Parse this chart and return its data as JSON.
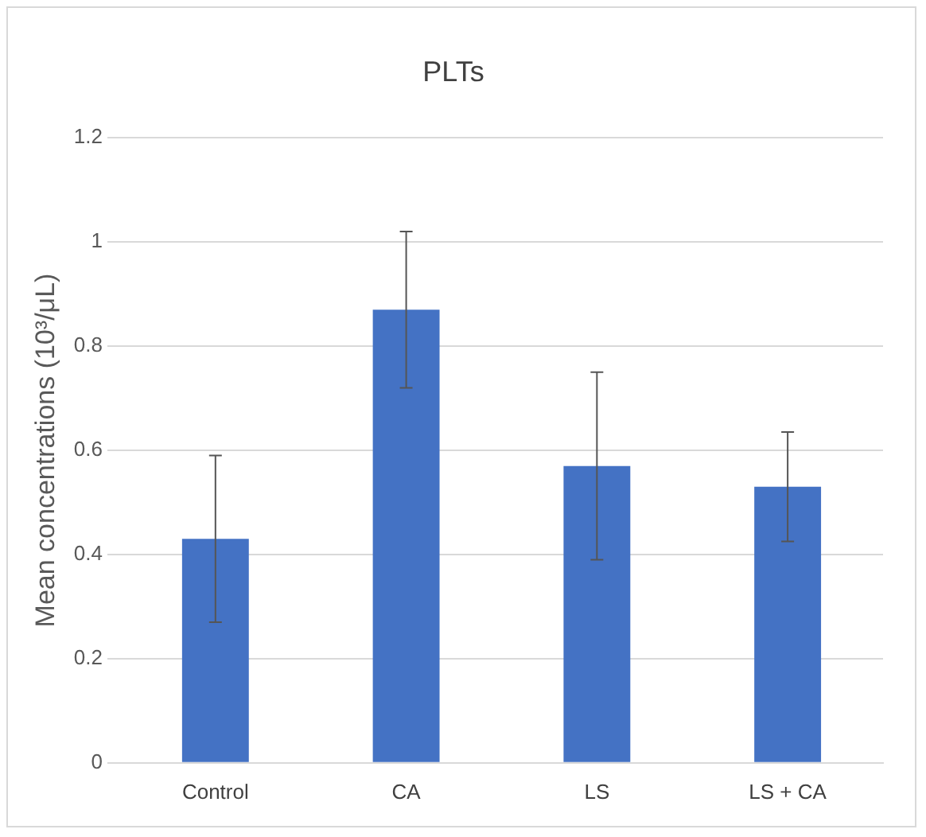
{
  "chart_data": {
    "type": "bar",
    "title": "PLTs",
    "ylabel": "Mean concentrations (10³/μL)",
    "categories": [
      "Control",
      "CA",
      "LS",
      "LS + CA"
    ],
    "values": [
      0.43,
      0.87,
      0.57,
      0.53
    ],
    "errors": [
      0.16,
      0.15,
      0.18,
      0.105
    ],
    "color": "#4472c4",
    "ylim": [
      0,
      1.2
    ],
    "yticks": [
      0,
      0.2,
      0.4,
      0.6,
      0.8,
      1,
      1.2
    ],
    "grid": "y"
  }
}
